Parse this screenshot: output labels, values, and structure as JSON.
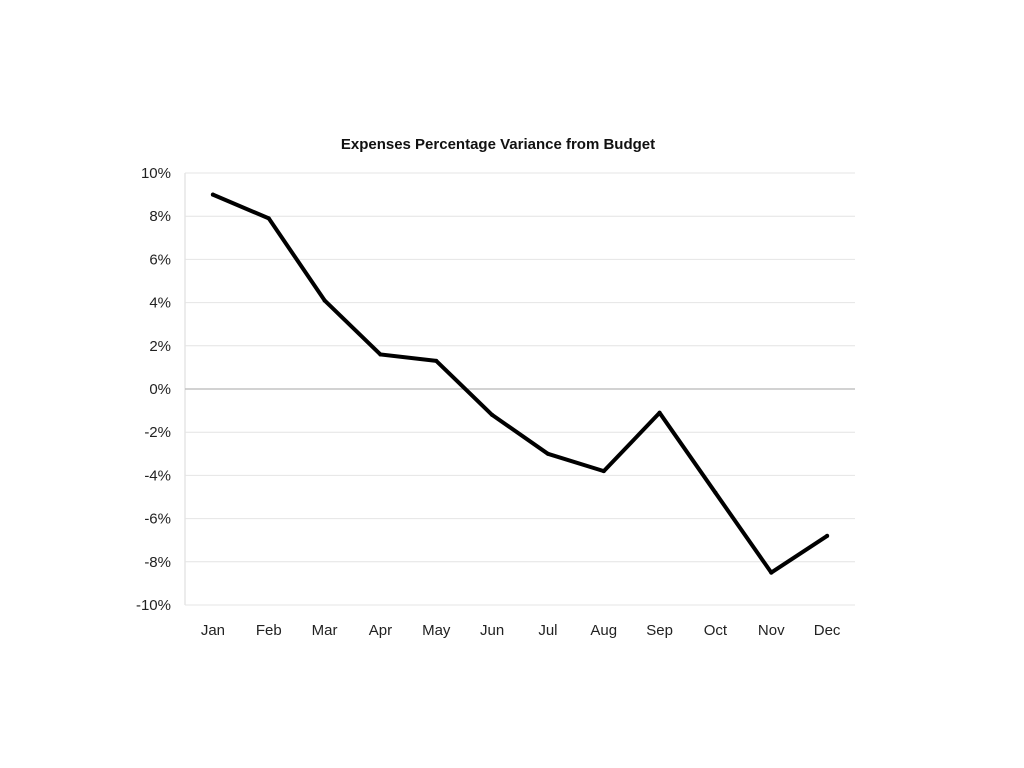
{
  "chart_data": {
    "type": "line",
    "title": "Expenses Percentage Variance from Budget",
    "xlabel": "",
    "ylabel": "",
    "categories": [
      "Jan",
      "Feb",
      "Mar",
      "Apr",
      "May",
      "Jun",
      "Jul",
      "Aug",
      "Sep",
      "Oct",
      "Nov",
      "Dec"
    ],
    "series": [
      {
        "values": [
          9.0,
          7.9,
          4.1,
          1.6,
          1.3,
          -1.2,
          -3.0,
          -3.8,
          -1.1,
          -4.8,
          -8.5,
          -6.8
        ],
        "color": "#000000"
      }
    ],
    "ylim": [
      -10,
      10
    ],
    "yticks": [
      10,
      8,
      6,
      4,
      2,
      0,
      -2,
      -4,
      -6,
      -8,
      -10
    ],
    "ytick_labels": [
      "10%",
      "8%",
      "6%",
      "4%",
      "2%",
      "0%",
      "-2%",
      "-4%",
      "-6%",
      "-8%",
      "-10%"
    ],
    "grid": true,
    "legend": "none"
  }
}
